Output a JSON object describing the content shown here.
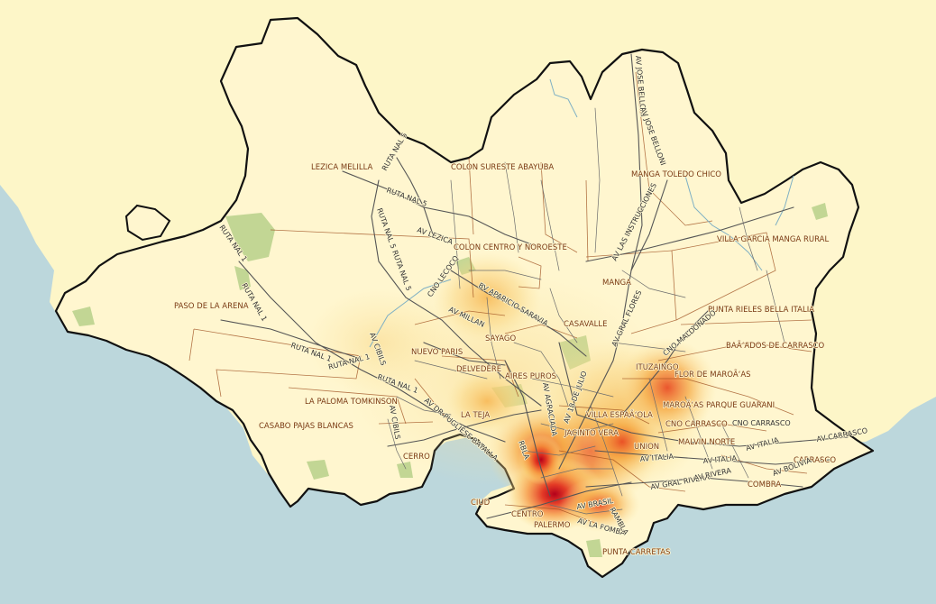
{
  "map": {
    "colors": {
      "sea": "#bcd7dc",
      "land_outside": "#fdf6c8",
      "land_inside": "#fff6cf",
      "boundary": "#111111",
      "barrio_lines": "#9b4a1a",
      "roads": "#555555",
      "label": "#7a3a12",
      "heat_low": "#fbe39a",
      "heat_mid": "#f5a640",
      "heat_high": "#c8102e"
    },
    "place_labels": [
      "LEZICA MELILLA",
      "COLON SURESTE ABAYUBA",
      "MANGA TOLEDO CHICO",
      "COLON CENTRO Y NOROESTE",
      "VILLA GARCIA MANGA RURAL",
      "MANGA",
      "PASO DE LA ARENA",
      "CASAVALLE",
      "PUNTA RIELES BELLA ITALIA",
      "SAYAGO",
      "BAÃ‘ADOS DE CARRASCO",
      "NUEVO PARIS",
      "ITUZAINGO",
      "DELVEDERE",
      "AIRES PUROS",
      "FLOR DE MAROÃ‘AS",
      "LA PALOMA TOMKINSON",
      "MAROÃ‘AS PARQUE GUARANI",
      "LA TEJA",
      "VILLA ESPAÃ‘OLA",
      "CASABO PAJAS BLANCAS",
      "CNO CARRASCO",
      "JACINTO VERA",
      "UNION",
      "MALVIN NORTE",
      "CERRO",
      "CARRASCO",
      "CIUD",
      "CENTRO",
      "PALERMO",
      "COMBRA",
      "PUNTA CARRETAS"
    ],
    "road_labels": [
      "RUTA NAL 5",
      "RUTA NAL 5",
      "AV LEZICA",
      "RUTA NAL 5 RUTA NAL 5",
      "RUTA NAL 1",
      "RUTA NAL 1",
      "RUTA NAL 1",
      "RUTA NAL 1",
      "RUTA NAL 1",
      "CNO LECOCQ",
      "AV MILLAN",
      "BV APARICIO SARAVIA",
      "AV LAS INSTRUCCIONES",
      "AV JOSE BELLONI",
      "AV JOSE BELLONI",
      "AV GRAL FLORES",
      "CNO MALDONADO",
      "AV CIBILS",
      "AV CIBILS",
      "AV DR PUGLIESE BATALLA",
      "AV AGRACIADA",
      "AV GRAL RIVERA",
      "AV ITALIA",
      "AV ITALIA",
      "AV ITALIA",
      "AV BOLIVIA",
      "CNO CARRASCO",
      "AV BRASIL",
      "AV 18 DE JULIO",
      "RBLA",
      "AV LA FOMBA",
      "AV CARRASCO",
      "AV RIVERA",
      "RAMBLA"
    ]
  }
}
